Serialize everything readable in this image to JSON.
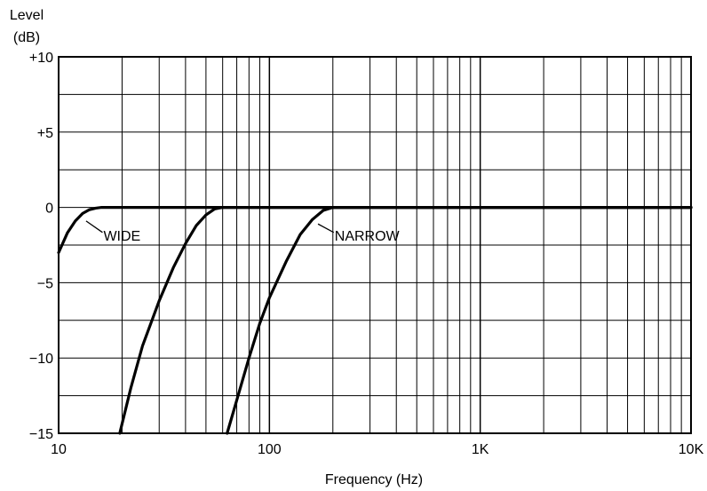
{
  "chart_data": {
    "type": "line",
    "title": "",
    "ylabel": "Level\n(dB)",
    "xlabel": "Frequency (Hz)",
    "xscale": "log",
    "xlim": [
      10,
      10000
    ],
    "ylim": [
      -15,
      10
    ],
    "grid": true,
    "x_ticks": [
      {
        "value": 10,
        "label": "10"
      },
      {
        "value": 100,
        "label": "100"
      },
      {
        "value": 1000,
        "label": "1K"
      },
      {
        "value": 10000,
        "label": "10K"
      }
    ],
    "y_ticks": [
      {
        "value": 10,
        "label": "+10"
      },
      {
        "value": 5,
        "label": "+5"
      },
      {
        "value": 0,
        "label": "0"
      },
      {
        "value": -5,
        "label": "−5"
      },
      {
        "value": -10,
        "label": "−10"
      },
      {
        "value": -15,
        "label": "−15"
      }
    ],
    "series": [
      {
        "x": [
          10,
          11,
          12,
          13,
          14,
          15,
          16,
          17,
          18,
          20,
          30,
          60,
          100,
          1000,
          10000
        ],
        "y": [
          -3.0,
          -1.7,
          -0.9,
          -0.4,
          -0.15,
          -0.05,
          0,
          0,
          0,
          0,
          0,
          0,
          0,
          0,
          0
        ]
      },
      {
        "x": [
          19.5,
          22,
          25,
          30,
          35,
          40,
          45,
          50,
          55,
          60,
          100,
          1000,
          10000
        ],
        "y": [
          -15.0,
          -12.0,
          -9.2,
          -6.2,
          -4.0,
          -2.4,
          -1.2,
          -0.5,
          -0.1,
          0,
          0,
          0,
          0
        ]
      },
      {
        "x": [
          63,
          70,
          80,
          90,
          100,
          120,
          140,
          160,
          180,
          200,
          1000,
          10000
        ],
        "y": [
          -15.0,
          -12.8,
          -10.0,
          -7.7,
          -6.0,
          -3.6,
          -1.8,
          -0.8,
          -0.2,
          0,
          0,
          0
        ]
      }
    ],
    "annotations": [
      {
        "text": "WIDE",
        "x": 16,
        "y": -1.9,
        "point_x": 13.5,
        "point_y": -0.9
      },
      {
        "text": "NARROW",
        "x": 200,
        "y": -1.9,
        "point_x": 170,
        "point_y": -1.1
      }
    ]
  }
}
